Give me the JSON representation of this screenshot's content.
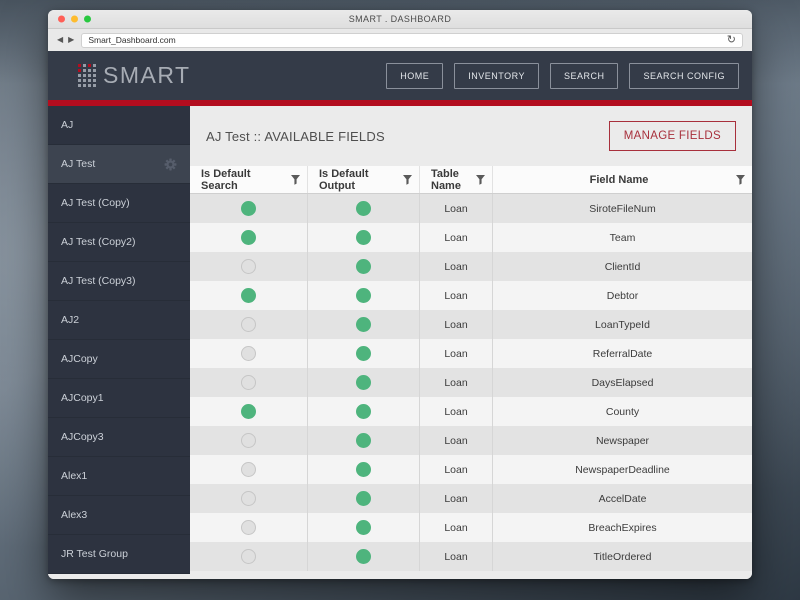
{
  "browser": {
    "window_title": "SMART . DASHBOARD",
    "url": "Smart_Dashboard.com",
    "icons": {
      "back": "◀",
      "forward": "▶",
      "reload": "↻"
    }
  },
  "header": {
    "logo_text": "SMART",
    "nav": [
      {
        "label": "HOME"
      },
      {
        "label": "INVENTORY"
      },
      {
        "label": "SEARCH"
      },
      {
        "label": "SEARCH CONFIG"
      }
    ]
  },
  "sidebar": {
    "items": [
      {
        "label": "AJ",
        "selected": false
      },
      {
        "label": "AJ Test",
        "selected": true
      },
      {
        "label": "AJ Test (Copy)",
        "selected": false
      },
      {
        "label": "AJ Test (Copy2)",
        "selected": false
      },
      {
        "label": "AJ Test (Copy3)",
        "selected": false
      },
      {
        "label": "AJ2",
        "selected": false
      },
      {
        "label": "AJCopy",
        "selected": false
      },
      {
        "label": "AJCopy1",
        "selected": false
      },
      {
        "label": "AJCopy3",
        "selected": false
      },
      {
        "label": "Alex1",
        "selected": false
      },
      {
        "label": "Alex3",
        "selected": false
      },
      {
        "label": "JR Test Group",
        "selected": false
      }
    ]
  },
  "main": {
    "title": "AJ Test :: AVAILABLE FIELDS",
    "manage_fields_label": "MANAGE FIELDS",
    "table": {
      "columns": [
        "Is Default Search",
        "Is Default Output",
        "Table Name",
        "Field Name"
      ],
      "rows": [
        {
          "is_default_search": true,
          "is_default_output": true,
          "table_name": "Loan",
          "field_name": "SiroteFileNum"
        },
        {
          "is_default_search": true,
          "is_default_output": true,
          "table_name": "Loan",
          "field_name": "Team"
        },
        {
          "is_default_search": false,
          "is_default_output": true,
          "table_name": "Loan",
          "field_name": "ClientId"
        },
        {
          "is_default_search": true,
          "is_default_output": true,
          "table_name": "Loan",
          "field_name": "Debtor"
        },
        {
          "is_default_search": false,
          "is_default_output": true,
          "table_name": "Loan",
          "field_name": "LoanTypeId"
        },
        {
          "is_default_search": false,
          "is_default_output": true,
          "table_name": "Loan",
          "field_name": "ReferralDate"
        },
        {
          "is_default_search": false,
          "is_default_output": true,
          "table_name": "Loan",
          "field_name": "DaysElapsed"
        },
        {
          "is_default_search": true,
          "is_default_output": true,
          "table_name": "Loan",
          "field_name": "County"
        },
        {
          "is_default_search": false,
          "is_default_output": true,
          "table_name": "Loan",
          "field_name": "Newspaper"
        },
        {
          "is_default_search": false,
          "is_default_output": true,
          "table_name": "Loan",
          "field_name": "NewspaperDeadline"
        },
        {
          "is_default_search": false,
          "is_default_output": true,
          "table_name": "Loan",
          "field_name": "AccelDate"
        },
        {
          "is_default_search": false,
          "is_default_output": true,
          "table_name": "Loan",
          "field_name": "BreachExpires"
        },
        {
          "is_default_search": false,
          "is_default_output": true,
          "table_name": "Loan",
          "field_name": "TitleOrdered"
        }
      ]
    }
  },
  "colors": {
    "accent_red": "#b30d1f",
    "manage_red": "#a8303c",
    "dot_green": "#4eb47d",
    "dot_off": "#e0e0e0",
    "header_bg": "#343b48",
    "sidebar_bg": "#2d3340",
    "sidebar_selected_bg": "#3d4450",
    "traffic_red": "#ff5f57",
    "traffic_yellow": "#febc2e",
    "traffic_green": "#28c840"
  }
}
